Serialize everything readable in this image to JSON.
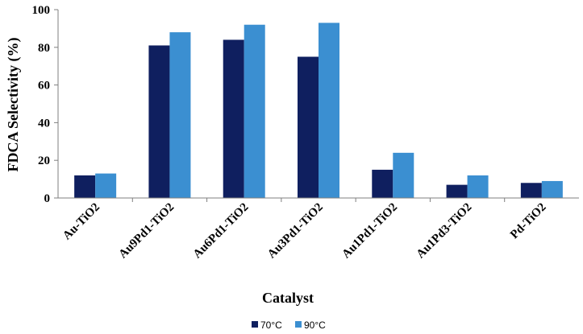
{
  "chart_data": {
    "type": "bar",
    "xlabel": "Catalyst",
    "ylabel": "FDCA Selectivity (%)",
    "ylim": [
      0,
      100
    ],
    "yticks": [
      0,
      20,
      40,
      60,
      80,
      100
    ],
    "grid": false,
    "legend_position": "bottom",
    "categories": [
      "Au-TiO2",
      "Au9Pd1-TiO2",
      "Au6Pd1-TiO2",
      "Au3Pd1-TiO2",
      "Au1Pd1-TiO2",
      "Au1Pd3-TiO2",
      "Pd-TiO2"
    ],
    "series": [
      {
        "name": "70°C",
        "color": "#0f1f5f",
        "values": [
          12,
          81,
          84,
          75,
          15,
          7,
          8
        ]
      },
      {
        "name": "90°C",
        "color": "#3b8fd1",
        "values": [
          13,
          88,
          92,
          93,
          24,
          12,
          9
        ]
      }
    ]
  }
}
